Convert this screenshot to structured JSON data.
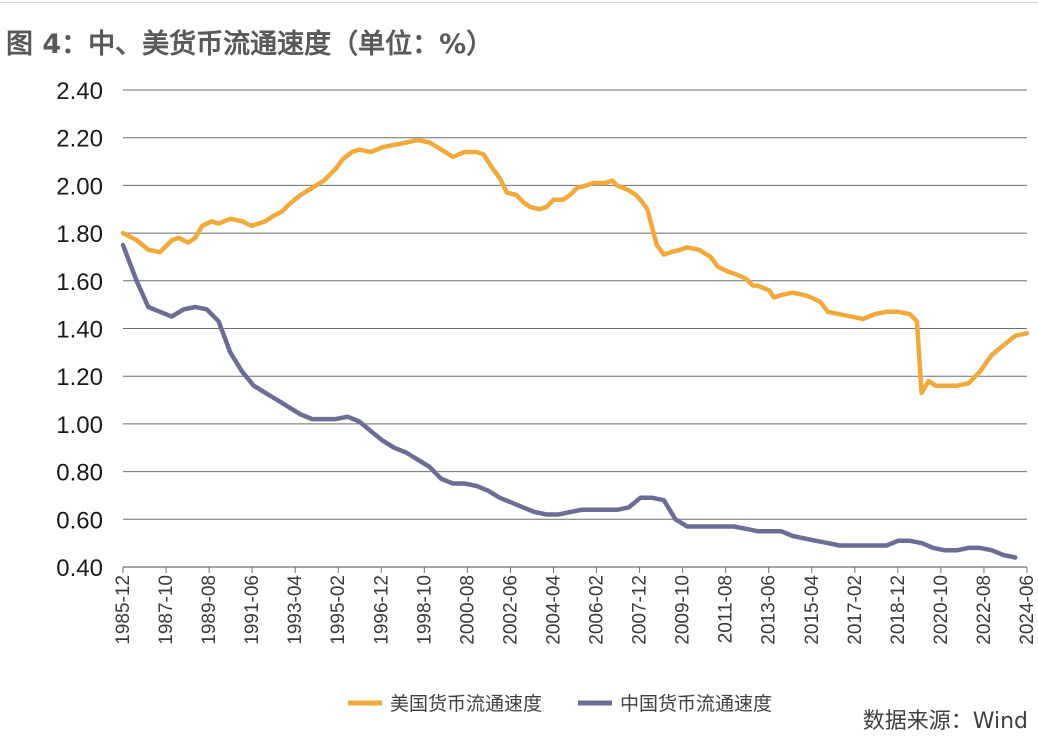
{
  "title": "图 4：中、美货币流通速度（单位：%）",
  "source": "数据来源：Wind",
  "chart_data": {
    "type": "line",
    "title": "图 4：中、美货币流通速度（单位：%）",
    "ylim": [
      0.4,
      2.4
    ],
    "y_ticks": [
      "0.40",
      "0.60",
      "0.80",
      "1.00",
      "1.20",
      "1.40",
      "1.60",
      "1.80",
      "2.00",
      "2.20",
      "2.40"
    ],
    "x_ticks": [
      "1985-12",
      "1987-10",
      "1989-08",
      "1991-06",
      "1993-04",
      "1995-02",
      "1996-12",
      "1998-10",
      "2000-08",
      "2002-06",
      "2004-04",
      "2006-02",
      "2007-12",
      "2009-10",
      "2011-08",
      "2013-06",
      "2015-04",
      "2017-02",
      "2018-12",
      "2020-10",
      "2022-08",
      "2024-06"
    ],
    "grid": "horizontal",
    "legend": "bottom",
    "series": [
      {
        "name": "美国货币流通速度",
        "color": "#f0a93a",
        "x": [
          1985.92,
          1986.5,
          1987.0,
          1987.5,
          1988.0,
          1988.3,
          1988.7,
          1989.0,
          1989.3,
          1989.7,
          1990.0,
          1990.5,
          1991.0,
          1991.4,
          1992.0,
          1992.3,
          1992.7,
          1993.0,
          1993.5,
          1994.0,
          1994.5,
          1995.0,
          1995.3,
          1995.7,
          1996.0,
          1996.5,
          1997.0,
          1997.5,
          1998.0,
          1998.5,
          1999.0,
          1999.5,
          2000.0,
          2000.5,
          2000.8,
          2001.0,
          2001.3,
          2001.7,
          2002.0,
          2002.3,
          2002.7,
          2003.0,
          2003.3,
          2003.7,
          2004.0,
          2004.3,
          2004.7,
          2005.0,
          2005.3,
          2005.7,
          2006.0,
          2006.5,
          2006.8,
          2007.0,
          2007.5,
          2007.8,
          2008.0,
          2008.3,
          2008.7,
          2009.0,
          2009.3,
          2009.7,
          2010.0,
          2010.5,
          2011.0,
          2011.3,
          2011.7,
          2012.0,
          2012.5,
          2012.8,
          2013.0,
          2013.5,
          2013.7,
          2014.0,
          2014.5,
          2015.0,
          2015.3,
          2015.7,
          2016.0,
          2016.5,
          2017.0,
          2017.5,
          2018.0,
          2018.5,
          2019.0,
          2019.5,
          2019.8,
          2020.0,
          2020.3,
          2020.6,
          2021.0,
          2021.5,
          2022.0,
          2022.5,
          2023.0,
          2023.5,
          2024.0,
          2024.5
        ],
        "values": [
          1.8,
          1.77,
          1.73,
          1.72,
          1.77,
          1.78,
          1.76,
          1.78,
          1.83,
          1.85,
          1.84,
          1.86,
          1.85,
          1.83,
          1.85,
          1.87,
          1.89,
          1.92,
          1.96,
          1.99,
          2.02,
          2.07,
          2.11,
          2.14,
          2.15,
          2.14,
          2.16,
          2.17,
          2.18,
          2.19,
          2.18,
          2.15,
          2.12,
          2.14,
          2.14,
          2.14,
          2.13,
          2.07,
          2.03,
          1.97,
          1.96,
          1.93,
          1.91,
          1.9,
          1.91,
          1.94,
          1.94,
          1.96,
          1.99,
          2.0,
          2.01,
          2.01,
          2.02,
          2.0,
          1.98,
          1.96,
          1.94,
          1.9,
          1.75,
          1.71,
          1.72,
          1.73,
          1.74,
          1.73,
          1.7,
          1.66,
          1.64,
          1.63,
          1.61,
          1.58,
          1.58,
          1.56,
          1.53,
          1.54,
          1.55,
          1.54,
          1.53,
          1.51,
          1.47,
          1.46,
          1.45,
          1.44,
          1.46,
          1.47,
          1.47,
          1.46,
          1.43,
          1.13,
          1.18,
          1.16,
          1.16,
          1.16,
          1.17,
          1.22,
          1.29,
          1.33,
          1.37,
          1.38
        ]
      },
      {
        "name": "中国货币流通速度",
        "color": "#6b6d94",
        "x": [
          1985.92,
          1986.5,
          1987.0,
          1987.5,
          1988.0,
          1988.5,
          1989.0,
          1989.5,
          1990.0,
          1990.5,
          1991.0,
          1991.5,
          1992.0,
          1992.5,
          1993.0,
          1993.5,
          1994.0,
          1994.5,
          1995.0,
          1995.5,
          1996.0,
          1996.5,
          1997.0,
          1997.5,
          1998.0,
          1998.5,
          1999.0,
          1999.5,
          2000.0,
          2000.5,
          2001.0,
          2001.5,
          2002.0,
          2002.5,
          2003.0,
          2003.5,
          2004.0,
          2004.5,
          2005.0,
          2005.5,
          2006.0,
          2006.5,
          2007.0,
          2007.5,
          2008.0,
          2008.5,
          2009.0,
          2009.5,
          2010.0,
          2010.5,
          2011.0,
          2011.5,
          2012.0,
          2012.5,
          2013.0,
          2013.5,
          2014.0,
          2014.5,
          2015.0,
          2015.5,
          2016.0,
          2016.5,
          2017.0,
          2017.5,
          2018.0,
          2018.5,
          2019.0,
          2019.5,
          2020.0,
          2020.5,
          2021.0,
          2021.5,
          2022.0,
          2022.5,
          2023.0,
          2023.5,
          2024.0
        ],
        "values": [
          1.75,
          1.6,
          1.49,
          1.47,
          1.45,
          1.48,
          1.49,
          1.48,
          1.43,
          1.3,
          1.22,
          1.16,
          1.13,
          1.1,
          1.07,
          1.04,
          1.02,
          1.02,
          1.02,
          1.03,
          1.01,
          0.97,
          0.93,
          0.9,
          0.88,
          0.85,
          0.82,
          0.77,
          0.75,
          0.75,
          0.74,
          0.72,
          0.69,
          0.67,
          0.65,
          0.63,
          0.62,
          0.62,
          0.63,
          0.64,
          0.64,
          0.64,
          0.64,
          0.65,
          0.69,
          0.69,
          0.68,
          0.6,
          0.57,
          0.57,
          0.57,
          0.57,
          0.57,
          0.56,
          0.55,
          0.55,
          0.55,
          0.53,
          0.52,
          0.51,
          0.5,
          0.49,
          0.49,
          0.49,
          0.49,
          0.49,
          0.51,
          0.51,
          0.5,
          0.48,
          0.47,
          0.47,
          0.48,
          0.48,
          0.47,
          0.45,
          0.44
        ]
      }
    ]
  }
}
